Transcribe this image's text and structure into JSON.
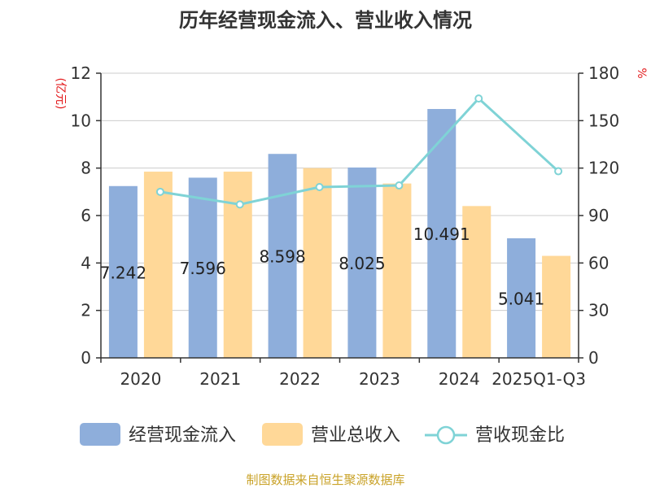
{
  "colors": {
    "cash_inflow": "#8eaedb",
    "revenue": "#ffd898",
    "ratio": "#7fd3d6",
    "unit": "#e31a1c",
    "source": "#c9a227",
    "axis": "#333333",
    "grid": "#cccccc"
  },
  "chart_data": {
    "type": "bar",
    "title": "历年经营现金流入、营业收入情况",
    "categories": [
      "2020",
      "2021",
      "2022",
      "2023",
      "2024",
      "2025Q1-Q3"
    ],
    "series": [
      {
        "name": "经营现金流入",
        "type": "bar",
        "axis": "left",
        "values": [
          7.242,
          7.596,
          8.598,
          8.025,
          10.491,
          5.041
        ]
      },
      {
        "name": "营业总收入",
        "type": "bar",
        "axis": "left",
        "values": [
          7.85,
          7.85,
          8.0,
          7.35,
          6.4,
          4.3
        ]
      },
      {
        "name": "营收现金比",
        "type": "line",
        "axis": "right",
        "values": [
          105,
          97,
          108,
          109,
          164,
          118
        ]
      }
    ],
    "y_left": {
      "label": "(亿元)",
      "ylim": [
        0,
        12
      ],
      "ticks": [
        "0",
        "2",
        "4",
        "6",
        "8",
        "10",
        "12"
      ]
    },
    "y_right": {
      "label": "%",
      "ylim": [
        0,
        180
      ],
      "ticks": [
        "0",
        "30",
        "60",
        "90",
        "120",
        "150",
        "180"
      ]
    },
    "bar_labels": [
      "7.242",
      "7.596",
      "8.598",
      "8.025",
      "10.491",
      "5.041"
    ],
    "grid": true,
    "legend_position": "bottom"
  },
  "source_text": "制图数据来自恒生聚源数据库"
}
